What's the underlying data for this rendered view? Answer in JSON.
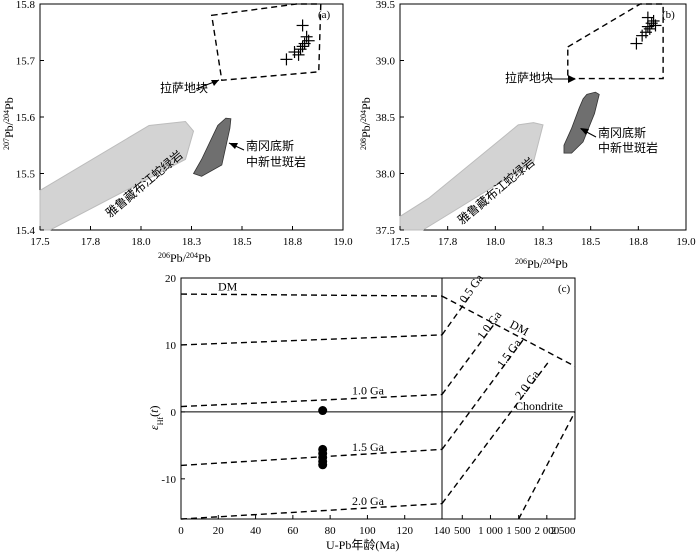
{
  "chart_data": [
    {
      "type": "scatter",
      "panel_label": "(a)",
      "xlabel": "206Pb/204Pb",
      "ylabel": "207Pb/204Pb",
      "xlim": [
        17.5,
        19.0
      ],
      "ylim": [
        15.4,
        15.8
      ],
      "x_ticks": [
        "17.5",
        "17.8",
        "18.0",
        "18.3",
        "18.5",
        "18.8",
        "19.0"
      ],
      "x_tick_values": [
        17.5,
        17.75,
        18.0,
        18.25,
        18.5,
        18.75,
        19.0
      ],
      "y_ticks": [
        "15.4",
        "15.5",
        "15.6",
        "15.7",
        "15.8"
      ],
      "y_tick_values": [
        15.4,
        15.5,
        15.6,
        15.7,
        15.8
      ],
      "points": [
        {
          "x": 18.72,
          "y": 15.702
        },
        {
          "x": 18.76,
          "y": 15.715
        },
        {
          "x": 18.78,
          "y": 15.71
        },
        {
          "x": 18.79,
          "y": 15.72
        },
        {
          "x": 18.8,
          "y": 15.725
        },
        {
          "x": 18.81,
          "y": 15.73
        },
        {
          "x": 18.82,
          "y": 15.742
        },
        {
          "x": 18.8,
          "y": 15.762
        },
        {
          "x": 18.83,
          "y": 15.735
        }
      ],
      "lhasa_field": [
        [
          18.35,
          15.78
        ],
        [
          18.77,
          15.8
        ],
        [
          18.89,
          15.8
        ],
        [
          18.88,
          15.68
        ],
        [
          18.4,
          15.665
        ]
      ],
      "lhasa_label": "拉萨地块",
      "yarlung_field": [
        [
          17.5,
          15.47
        ],
        [
          18.04,
          15.585
        ],
        [
          18.22,
          15.592
        ],
        [
          18.26,
          15.575
        ],
        [
          18.22,
          15.525
        ],
        [
          17.55,
          15.4
        ],
        [
          17.5,
          15.4
        ]
      ],
      "yarlung_label": "雅鲁藏布江蛇绿岩",
      "porphyry_field": [
        [
          18.38,
          15.585
        ],
        [
          18.42,
          15.598
        ],
        [
          18.445,
          15.597
        ],
        [
          18.44,
          15.58
        ],
        [
          18.4,
          15.515
        ],
        [
          18.3,
          15.495
        ],
        [
          18.26,
          15.5
        ],
        [
          18.3,
          15.525
        ],
        [
          18.36,
          15.57
        ]
      ],
      "porphyry_label_1": "南冈底斯",
      "porphyry_label_2": "中新世斑岩"
    },
    {
      "type": "scatter",
      "panel_label": "(b)",
      "xlabel": "206Pb/204Pb",
      "ylabel": "208Pb/204Pb",
      "xlim": [
        17.5,
        19.0
      ],
      "ylim": [
        37.5,
        39.5
      ],
      "x_ticks": [
        "17.5",
        "17.8",
        "18.0",
        "18.3",
        "18.5",
        "18.8",
        "19.0"
      ],
      "x_tick_values": [
        17.5,
        17.75,
        18.0,
        18.25,
        18.5,
        18.75,
        19.0
      ],
      "y_ticks": [
        "37.5",
        "38.0",
        "38.5",
        "39.0",
        "39.5"
      ],
      "y_tick_values": [
        37.5,
        38.0,
        38.5,
        39.0,
        39.5
      ],
      "points": [
        {
          "x": 18.74,
          "y": 39.15
        },
        {
          "x": 18.77,
          "y": 39.22
        },
        {
          "x": 18.79,
          "y": 39.25
        },
        {
          "x": 18.8,
          "y": 39.3
        },
        {
          "x": 18.81,
          "y": 39.28
        },
        {
          "x": 18.82,
          "y": 39.33
        },
        {
          "x": 18.83,
          "y": 39.35
        },
        {
          "x": 18.8,
          "y": 39.38
        },
        {
          "x": 18.84,
          "y": 39.31
        }
      ],
      "lhasa_field": [
        [
          18.38,
          39.12
        ],
        [
          18.76,
          39.5
        ],
        [
          18.88,
          39.5
        ],
        [
          18.88,
          38.84
        ],
        [
          18.38,
          38.84
        ]
      ],
      "lhasa_label": "拉萨地块",
      "yarlung_field": [
        [
          17.5,
          37.62
        ],
        [
          17.65,
          37.78
        ],
        [
          18.12,
          38.43
        ],
        [
          18.2,
          38.45
        ],
        [
          18.25,
          38.43
        ],
        [
          18.2,
          38.1
        ],
        [
          17.62,
          37.5
        ],
        [
          17.5,
          37.5
        ]
      ],
      "yarlung_label": "雅鲁藏布江蛇绿岩",
      "porphyry_field": [
        [
          18.46,
          38.66
        ],
        [
          18.48,
          38.7
        ],
        [
          18.525,
          38.72
        ],
        [
          18.545,
          38.7
        ],
        [
          18.52,
          38.53
        ],
        [
          18.46,
          38.28
        ],
        [
          18.4,
          38.18
        ],
        [
          18.36,
          38.18
        ],
        [
          18.36,
          38.25
        ],
        [
          18.4,
          38.4
        ],
        [
          18.44,
          38.58
        ]
      ],
      "porphyry_label_1": "南冈底斯",
      "porphyry_label_2": "中新世斑岩"
    },
    {
      "type": "scatter",
      "panel_label": "(c)",
      "xlabel": "U-Pb年龄(Ma)",
      "ylabel": "εHf(t)",
      "ylim": [
        -16,
        20
      ],
      "left_xlim": [
        0,
        140
      ],
      "right_xlim": [
        140,
        2500
      ],
      "left_x_ticks": [
        "0",
        "20",
        "40",
        "60",
        "80",
        "100",
        "120",
        "140"
      ],
      "left_x_tick_values": [
        0,
        20,
        40,
        60,
        80,
        100,
        120,
        140
      ],
      "right_x_ticks": [
        "500",
        "1 000",
        "1 500",
        "2 000",
        "2 500"
      ],
      "right_x_tick_values": [
        500,
        1000,
        1500,
        2000,
        2500
      ],
      "y_ticks": [
        "-10",
        "0",
        "10",
        "20"
      ],
      "y_tick_values": [
        -10,
        0,
        10,
        20
      ],
      "points": [
        {
          "x": 76,
          "y": 0.2
        },
        {
          "x": 76,
          "y": -5.6
        },
        {
          "x": 76,
          "y": -6.2
        },
        {
          "x": 76,
          "y": -6.8
        },
        {
          "x": 76,
          "y": -7.4
        },
        {
          "x": 76,
          "y": -7.9
        }
      ],
      "left_lines": [
        {
          "label": "DM",
          "y0": 17.6,
          "y1": 17.3
        },
        {
          "label": "",
          "y0": 10.0,
          "y1": 11.5
        },
        {
          "label": "1.0 Ga",
          "y0": 0.8,
          "y1": 2.6
        },
        {
          "label": "1.5 Ga",
          "y0": -8.0,
          "y1": -5.6
        },
        {
          "label": "2.0 Ga",
          "y0": -16.0,
          "y1": -13.7
        }
      ],
      "right_lines": [
        {
          "label": "DM",
          "x0": 140,
          "y0": 17.3,
          "x1": 2500,
          "y1": 6.8
        },
        {
          "label": "0.5 Ga",
          "x0": 140,
          "y0": 11.5,
          "x1": 650,
          "y1": 17.5
        },
        {
          "label": "1.0 Ga",
          "x0": 140,
          "y0": 2.6,
          "x1": 1100,
          "y1": 13.5
        },
        {
          "label": "1.5 Ga",
          "x0": 140,
          "y0": -5.6,
          "x1": 1600,
          "y1": 11.0
        },
        {
          "label": "2.0 Ga",
          "x0": 140,
          "y0": -13.7,
          "x1": 2060,
          "y1": 7.8
        },
        {
          "label": "",
          "x0": 1500,
          "y0": -16.0,
          "x1": 2500,
          "y1": 0.0
        }
      ],
      "chondrite_label": "Chondrite"
    }
  ]
}
